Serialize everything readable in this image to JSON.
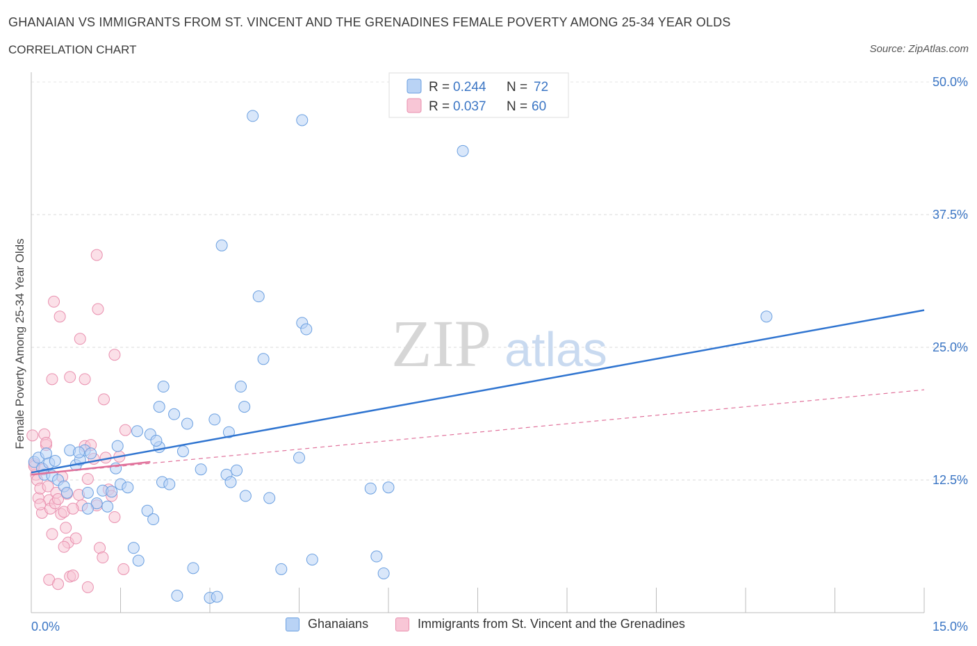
{
  "header": {
    "title": "GHANAIAN VS IMMIGRANTS FROM ST. VINCENT AND THE GRENADINES FEMALE POVERTY AMONG 25-34 YEAR OLDS",
    "subtitle": "CORRELATION CHART",
    "source": "Source: ZipAtlas.com"
  },
  "watermark": {
    "zip": "ZIP",
    "atlas": "atlas"
  },
  "colors": {
    "blue_fill": "#b9d3f5",
    "blue_stroke": "#6a9fe0",
    "blue_line": "#2f74d0",
    "pink_fill": "#f8c6d6",
    "pink_stroke": "#e98fae",
    "pink_line": "#e0709a",
    "axis_label": "#3a75c4",
    "grid": "#d9d9d9"
  },
  "legend_top": {
    "rows": [
      {
        "r_label": "R = ",
        "r_value": "0.244",
        "n_label": "N = ",
        "n_value": "72",
        "series": "blue"
      },
      {
        "r_label": "R = ",
        "r_value": "0.037",
        "n_label": "N = ",
        "n_value": "60",
        "series": "pink"
      }
    ]
  },
  "legend_bottom": {
    "items": [
      "Ghanaians",
      "Immigrants from St. Vincent and the Grenadines"
    ]
  },
  "chart_data": {
    "type": "scatter",
    "title": "GHANAIAN VS IMMIGRANTS FROM ST. VINCENT AND THE GRENADINES FEMALE POVERTY AMONG 25-34 YEAR OLDS",
    "xlabel": "",
    "ylabel": "Female Poverty Among 25-34 Year Olds",
    "xlim": [
      0,
      15
    ],
    "ylim": [
      0,
      50
    ],
    "x_tick_labels": [
      "0.0%",
      "15.0%"
    ],
    "y_ticks": [
      12.5,
      25.0,
      37.5,
      50.0
    ],
    "y_tick_labels": [
      "12.5%",
      "25.0%",
      "37.5%",
      "50.0%"
    ],
    "grid": "horizontal dashed",
    "legend_position": "top-center",
    "series": [
      {
        "name": "Ghanaians",
        "color": "#6a9fe0",
        "R": 0.244,
        "N": 72,
        "trend": {
          "x": [
            0.0,
            15.0
          ],
          "y": [
            13.2,
            28.5
          ],
          "style": "solid"
        },
        "points": [
          [
            0.05,
            14.2
          ],
          [
            0.12,
            14.6
          ],
          [
            0.18,
            13.6
          ],
          [
            0.22,
            13.0
          ],
          [
            0.3,
            14.1
          ],
          [
            0.35,
            12.9
          ],
          [
            0.45,
            12.5
          ],
          [
            0.55,
            11.9
          ],
          [
            0.6,
            11.3
          ],
          [
            0.65,
            15.3
          ],
          [
            0.75,
            13.9
          ],
          [
            0.82,
            14.4
          ],
          [
            0.9,
            15.3
          ],
          [
            0.95,
            11.3
          ],
          [
            1.2,
            11.5
          ],
          [
            1.28,
            10.0
          ],
          [
            1.35,
            11.4
          ],
          [
            1.42,
            13.6
          ],
          [
            1.5,
            12.1
          ],
          [
            1.62,
            11.8
          ],
          [
            1.72,
            6.1
          ],
          [
            1.8,
            4.9
          ],
          [
            1.95,
            9.6
          ],
          [
            2.05,
            8.8
          ],
          [
            2.15,
            15.6
          ],
          [
            2.2,
            12.3
          ],
          [
            2.32,
            12.1
          ],
          [
            2.45,
            1.6
          ],
          [
            2.55,
            15.2
          ],
          [
            2.72,
            4.2
          ],
          [
            2.85,
            13.5
          ],
          [
            3.0,
            1.4
          ],
          [
            3.12,
            1.5
          ],
          [
            3.28,
            13.0
          ],
          [
            3.35,
            12.3
          ],
          [
            3.45,
            13.4
          ],
          [
            3.6,
            11.0
          ],
          [
            4.0,
            10.8
          ],
          [
            4.2,
            4.1
          ],
          [
            4.5,
            14.6
          ],
          [
            4.72,
            5.0
          ],
          [
            5.7,
            11.7
          ],
          [
            5.8,
            5.3
          ],
          [
            5.92,
            3.7
          ],
          [
            6.0,
            11.8
          ],
          [
            0.8,
            15.1
          ],
          [
            1.0,
            15.0
          ],
          [
            1.1,
            10.3
          ],
          [
            0.95,
            9.8
          ],
          [
            1.45,
            15.7
          ],
          [
            2.0,
            16.8
          ],
          [
            2.1,
            16.2
          ],
          [
            1.78,
            17.1
          ],
          [
            2.15,
            19.4
          ],
          [
            2.22,
            21.3
          ],
          [
            2.4,
            18.7
          ],
          [
            2.62,
            17.8
          ],
          [
            3.08,
            18.2
          ],
          [
            3.32,
            17.0
          ],
          [
            3.52,
            21.3
          ],
          [
            3.58,
            19.4
          ],
          [
            3.9,
            23.9
          ],
          [
            4.55,
            27.3
          ],
          [
            4.62,
            26.7
          ],
          [
            3.82,
            29.8
          ],
          [
            3.2,
            34.6
          ],
          [
            3.72,
            46.8
          ],
          [
            4.55,
            46.4
          ],
          [
            7.25,
            43.5
          ],
          [
            12.35,
            27.9
          ],
          [
            0.25,
            15.0
          ],
          [
            0.4,
            14.3
          ]
        ]
      },
      {
        "name": "Immigrants from St. Vincent and the Grenadines",
        "color": "#e98fae",
        "R": 0.037,
        "N": 60,
        "trend_solid": {
          "x": [
            0.0,
            2.0
          ],
          "y": [
            13.0,
            14.2
          ],
          "style": "solid"
        },
        "trend_dashed": {
          "x": [
            0.0,
            15.0
          ],
          "y": [
            13.0,
            21.0
          ],
          "style": "dashed"
        },
        "points": [
          [
            0.02,
            16.7
          ],
          [
            0.05,
            14.0
          ],
          [
            0.08,
            13.0
          ],
          [
            0.1,
            12.5
          ],
          [
            0.12,
            10.8
          ],
          [
            0.15,
            11.7
          ],
          [
            0.18,
            9.4
          ],
          [
            0.2,
            13.5
          ],
          [
            0.22,
            16.8
          ],
          [
            0.25,
            15.8
          ],
          [
            0.28,
            11.9
          ],
          [
            0.3,
            10.6
          ],
          [
            0.32,
            9.8
          ],
          [
            0.35,
            7.4
          ],
          [
            0.4,
            10.3
          ],
          [
            0.42,
            11.3
          ],
          [
            0.45,
            10.7
          ],
          [
            0.5,
            9.3
          ],
          [
            0.52,
            12.8
          ],
          [
            0.55,
            9.5
          ],
          [
            0.58,
            8.0
          ],
          [
            0.62,
            6.6
          ],
          [
            0.65,
            3.4
          ],
          [
            0.7,
            3.5
          ],
          [
            0.75,
            7.0
          ],
          [
            0.8,
            11.1
          ],
          [
            0.85,
            10.1
          ],
          [
            0.9,
            15.7
          ],
          [
            0.95,
            12.6
          ],
          [
            1.0,
            15.8
          ],
          [
            1.05,
            14.5
          ],
          [
            1.1,
            10.1
          ],
          [
            1.15,
            6.1
          ],
          [
            1.2,
            5.2
          ],
          [
            1.25,
            14.6
          ],
          [
            1.3,
            11.6
          ],
          [
            1.35,
            11.0
          ],
          [
            1.4,
            9.0
          ],
          [
            1.48,
            14.7
          ],
          [
            1.55,
            4.1
          ],
          [
            0.3,
            3.1
          ],
          [
            0.45,
            2.7
          ],
          [
            0.55,
            6.2
          ],
          [
            0.95,
            2.4
          ],
          [
            0.38,
            29.3
          ],
          [
            0.48,
            27.9
          ],
          [
            1.12,
            28.6
          ],
          [
            0.82,
            25.8
          ],
          [
            1.4,
            24.3
          ],
          [
            0.35,
            22.0
          ],
          [
            0.65,
            22.2
          ],
          [
            0.9,
            22.0
          ],
          [
            1.22,
            20.1
          ],
          [
            1.58,
            17.2
          ],
          [
            0.25,
            16.0
          ],
          [
            1.1,
            33.7
          ],
          [
            0.05,
            13.8
          ],
          [
            0.15,
            10.2
          ],
          [
            0.7,
            9.8
          ],
          [
            0.6,
            11.2
          ]
        ]
      }
    ]
  }
}
